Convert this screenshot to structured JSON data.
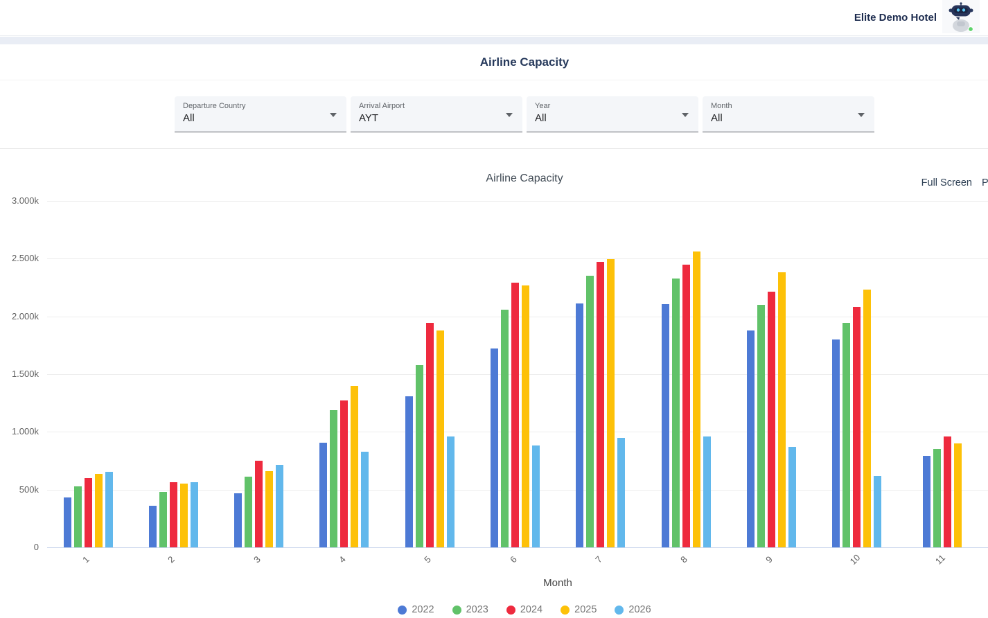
{
  "header": {
    "hotel_name": "Elite Demo Hotel"
  },
  "page": {
    "title": "Airline Capacity"
  },
  "filters": [
    {
      "label": "Departure Country",
      "value": "All"
    },
    {
      "label": "Arrival Airport",
      "value": "AYT"
    },
    {
      "label": "Year",
      "value": "All"
    },
    {
      "label": "Month",
      "value": "All"
    }
  ],
  "chart_panel": {
    "title": "Airline Capacity",
    "fullscreen_label": "Full Screen",
    "print_label": "P"
  },
  "chart_data": {
    "type": "bar",
    "title": "Airline Capacity",
    "xlabel": "Month",
    "ylabel": "",
    "unit": "thousands (k)",
    "ylim": [
      0,
      3000
    ],
    "grid": true,
    "legend_position": "bottom",
    "y_ticks": [
      "3.000k",
      "2.500k",
      "2.000k",
      "1.500k",
      "1.000k",
      "500k",
      "0"
    ],
    "categories": [
      "1",
      "2",
      "3",
      "4",
      "5",
      "6",
      "7",
      "8",
      "9",
      "10",
      "11"
    ],
    "series": [
      {
        "name": "2022",
        "color": "#4d7ad5",
        "values": [
          430,
          360,
          470,
          905,
          1310,
          1720,
          2110,
          2105,
          1880,
          1800,
          790
        ]
      },
      {
        "name": "2023",
        "color": "#61c269",
        "values": [
          530,
          480,
          615,
          1190,
          1580,
          2060,
          2350,
          2330,
          2100,
          1945,
          850
        ]
      },
      {
        "name": "2024",
        "color": "#ee2a3e",
        "values": [
          600,
          565,
          750,
          1270,
          1945,
          2295,
          2475,
          2450,
          2215,
          2080,
          960
        ]
      },
      {
        "name": "2025",
        "color": "#fdc108",
        "values": [
          635,
          555,
          660,
          1400,
          1880,
          2270,
          2495,
          2560,
          2380,
          2230,
          900
        ]
      },
      {
        "name": "2026",
        "color": "#62b8ec",
        "values": [
          655,
          565,
          715,
          830,
          960,
          880,
          950,
          960,
          870,
          620,
          null
        ]
      }
    ]
  }
}
